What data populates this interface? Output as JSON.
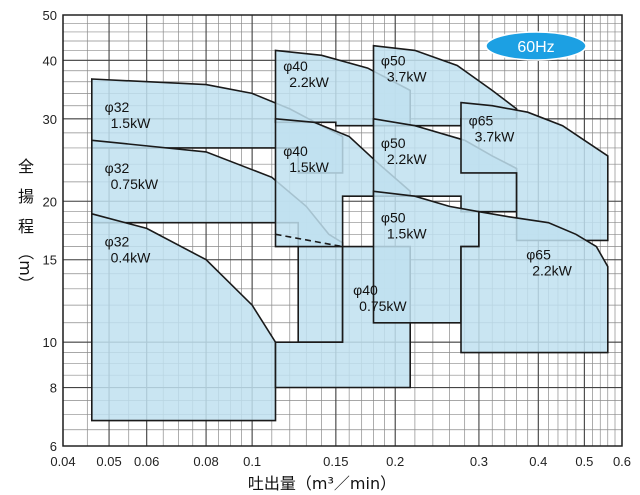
{
  "badge": {
    "text": "60Hz",
    "color": "#1ca0e3"
  },
  "y_axis_title": [
    "全",
    "揚",
    "程",
    "（m）"
  ],
  "x_axis_title": "吐出量（m³／min）",
  "chart_data": {
    "type": "area",
    "x_scale": "log",
    "y_scale": "log",
    "xlim": [
      0.04,
      0.6
    ],
    "ylim": [
      6,
      50
    ],
    "grid": true,
    "x_ticks": [
      {
        "value": 0.04,
        "label": "0.04"
      },
      {
        "value": 0.05,
        "label": "0.05"
      },
      {
        "value": 0.06,
        "label": "0.06"
      },
      {
        "value": 0.08,
        "label": "0.08"
      },
      {
        "value": 0.1,
        "label": "0.1"
      },
      {
        "value": 0.15,
        "label": "0.15"
      },
      {
        "value": 0.2,
        "label": "0.2"
      },
      {
        "value": 0.3,
        "label": "0.3"
      },
      {
        "value": 0.4,
        "label": "0.4"
      },
      {
        "value": 0.5,
        "label": "0.5"
      },
      {
        "value": 0.6,
        "label": "0.6"
      }
    ],
    "y_ticks": [
      {
        "value": 6,
        "label": "6"
      },
      {
        "value": 8,
        "label": "8"
      },
      {
        "value": 10,
        "label": "10"
      },
      {
        "value": 15,
        "label": "15"
      },
      {
        "value": 20,
        "label": "20"
      },
      {
        "value": 30,
        "label": "30"
      },
      {
        "value": 40,
        "label": "40"
      },
      {
        "value": 50,
        "label": "50"
      }
    ],
    "fill_color": "#bfe0f0",
    "zones": [
      {
        "diameter": "φ32",
        "power": "1.5kW",
        "polygon": [
          [
            0.046,
            36.5
          ],
          [
            0.08,
            35.5
          ],
          [
            0.1,
            34
          ],
          [
            0.12,
            31.5
          ],
          [
            0.14,
            29
          ],
          [
            0.155,
            27.5
          ],
          [
            0.155,
            23
          ],
          [
            0.125,
            23
          ],
          [
            0.125,
            26
          ],
          [
            0.046,
            26
          ]
        ]
      },
      {
        "diameter": "φ32",
        "power": "0.75kW",
        "polygon": [
          [
            0.046,
            27
          ],
          [
            0.08,
            25.5
          ],
          [
            0.11,
            22.5
          ],
          [
            0.13,
            19.5
          ],
          [
            0.145,
            17
          ],
          [
            0.155,
            16.3
          ],
          [
            0.155,
            10
          ],
          [
            0.125,
            10
          ],
          [
            0.125,
            18
          ],
          [
            0.046,
            18
          ]
        ]
      },
      {
        "diameter": "φ32",
        "power": "0.4kW",
        "polygon": [
          [
            0.046,
            18.8
          ],
          [
            0.06,
            17.5
          ],
          [
            0.08,
            15
          ],
          [
            0.1,
            12
          ],
          [
            0.112,
            10
          ],
          [
            0.112,
            6.8
          ],
          [
            0.046,
            6.8
          ]
        ]
      },
      {
        "diameter": "φ40",
        "power": "2.2kW",
        "polygon": [
          [
            0.112,
            42
          ],
          [
            0.14,
            41
          ],
          [
            0.175,
            38.5
          ],
          [
            0.215,
            34.5
          ],
          [
            0.215,
            29
          ],
          [
            0.15,
            29
          ],
          [
            0.15,
            29.5
          ],
          [
            0.112,
            29.5
          ]
        ]
      },
      {
        "diameter": "φ40",
        "power": "1.5kW",
        "polygon": [
          [
            0.112,
            30
          ],
          [
            0.135,
            29.5
          ],
          [
            0.16,
            27.5
          ],
          [
            0.185,
            24
          ],
          [
            0.215,
            21
          ],
          [
            0.215,
            20.5
          ],
          [
            0.155,
            20.5
          ],
          [
            0.155,
            16
          ],
          [
            0.112,
            16
          ]
        ]
      },
      {
        "diameter": "φ40",
        "power": "0.75kW",
        "polygon": [
          [
            0.155,
            16
          ],
          [
            0.215,
            16
          ],
          [
            0.215,
            8
          ],
          [
            0.112,
            8
          ],
          [
            0.112,
            10
          ],
          [
            0.155,
            10
          ]
        ]
      },
      {
        "diameter": "φ50",
        "power": "3.7kW",
        "polygon": [
          [
            0.18,
            43
          ],
          [
            0.22,
            42
          ],
          [
            0.27,
            39
          ],
          [
            0.32,
            34.5
          ],
          [
            0.36,
            31.5
          ],
          [
            0.36,
            30
          ],
          [
            0.275,
            30
          ],
          [
            0.275,
            29
          ],
          [
            0.18,
            29
          ]
        ]
      },
      {
        "diameter": "φ50",
        "power": "2.2kW",
        "polygon": [
          [
            0.18,
            30
          ],
          [
            0.22,
            29
          ],
          [
            0.28,
            27
          ],
          [
            0.32,
            25
          ],
          [
            0.36,
            23.5
          ],
          [
            0.36,
            19
          ],
          [
            0.275,
            19
          ],
          [
            0.275,
            20.5
          ],
          [
            0.18,
            20.5
          ]
        ]
      },
      {
        "diameter": "φ50",
        "power": "1.5kW",
        "polygon": [
          [
            0.18,
            21
          ],
          [
            0.22,
            20.5
          ],
          [
            0.26,
            19.5
          ],
          [
            0.3,
            19
          ],
          [
            0.3,
            16
          ],
          [
            0.275,
            16
          ],
          [
            0.275,
            11
          ],
          [
            0.18,
            11
          ]
        ]
      },
      {
        "diameter": "φ65",
        "power": "3.7kW",
        "polygon": [
          [
            0.275,
            32.5
          ],
          [
            0.32,
            32
          ],
          [
            0.38,
            31
          ],
          [
            0.45,
            29
          ],
          [
            0.5,
            27
          ],
          [
            0.56,
            25
          ],
          [
            0.56,
            16.5
          ],
          [
            0.36,
            16.5
          ],
          [
            0.36,
            23
          ],
          [
            0.275,
            23
          ]
        ]
      },
      {
        "diameter": "φ65",
        "power": "2.2kW",
        "polygon": [
          [
            0.3,
            19
          ],
          [
            0.35,
            18.5
          ],
          [
            0.42,
            18
          ],
          [
            0.48,
            17
          ],
          [
            0.53,
            16
          ],
          [
            0.56,
            14.5
          ],
          [
            0.56,
            9.5
          ],
          [
            0.275,
            9.5
          ],
          [
            0.275,
            16
          ],
          [
            0.3,
            16
          ]
        ]
      }
    ],
    "dashed_line": [
      [
        0.112,
        17
      ],
      [
        0.155,
        16
      ]
    ],
    "labels": [
      {
        "diameter": "φ32",
        "power": "1.5kW",
        "at": [
          0.048,
          31
        ]
      },
      {
        "diameter": "φ32",
        "power": "0.75kW",
        "at": [
          0.048,
          23
        ]
      },
      {
        "diameter": "φ32",
        "power": "0.4kW",
        "at": [
          0.048,
          16
        ]
      },
      {
        "diameter": "φ40",
        "power": "2.2kW",
        "at": [
          0.114,
          38
        ]
      },
      {
        "diameter": "φ40",
        "power": "1.5kW",
        "at": [
          0.114,
          25
        ]
      },
      {
        "diameter": "φ40",
        "power": "0.75kW",
        "at": [
          0.16,
          12.6
        ]
      },
      {
        "diameter": "φ50",
        "power": "3.7kW",
        "at": [
          0.183,
          39
        ]
      },
      {
        "diameter": "φ50",
        "power": "2.2kW",
        "at": [
          0.183,
          26
        ]
      },
      {
        "diameter": "φ50",
        "power": "1.5kW",
        "at": [
          0.183,
          18
        ]
      },
      {
        "diameter": "φ65",
        "power": "3.7kW",
        "at": [
          0.28,
          29
        ]
      },
      {
        "diameter": "φ65",
        "power": "2.2kW",
        "at": [
          0.37,
          15
        ]
      }
    ]
  }
}
